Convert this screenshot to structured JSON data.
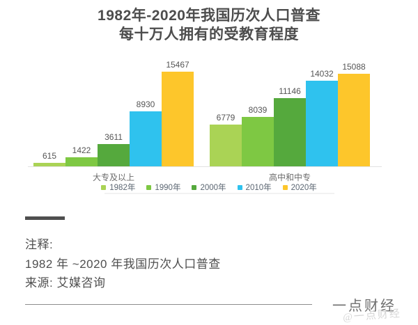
{
  "title": {
    "line1": "1982年-2020年我国历次人口普查",
    "line2": "每十万人拥有的受教育程度"
  },
  "chart_data": {
    "type": "bar",
    "title": "1982年-2020年我国历次人口普查 每十万人拥有的受教育程度",
    "categories": [
      "大专及以上",
      "高中和中专"
    ],
    "series": [
      {
        "name": "1982年",
        "color": "#aad355",
        "values": [
          615,
          6779
        ]
      },
      {
        "name": "1990年",
        "color": "#7ec843",
        "values": [
          1422,
          8039
        ]
      },
      {
        "name": "2000年",
        "color": "#55a93d",
        "values": [
          3611,
          11146
        ]
      },
      {
        "name": "2010年",
        "color": "#2fc2ee",
        "values": [
          8930,
          14032
        ]
      },
      {
        "name": "2020年",
        "color": "#fdc62b",
        "values": [
          15467,
          15088
        ]
      }
    ],
    "value_labels": [
      [
        615,
        1422,
        3611,
        8930,
        15467
      ],
      [
        6779,
        8039,
        11146,
        14032,
        15088
      ]
    ],
    "xlabel": "",
    "ylabel": "",
    "ylim": [
      0,
      15467
    ],
    "grid": false,
    "legend_position": "bottom"
  },
  "notes": {
    "label": "注释:",
    "line1": "1982 年 ~2020 年我国历次人口普查",
    "source": "来源: 艾媒咨询"
  },
  "footer": {
    "brand": "一点财经",
    "watermark": "@一点财经"
  },
  "colors": {
    "title_text": "#4d4d4d",
    "value_text": "#555555",
    "axis_line": "#e2e2e2",
    "note_text": "#4f4f4f",
    "brand_text": "#6e6e6e",
    "watermark_text": "#d6d6d6"
  }
}
